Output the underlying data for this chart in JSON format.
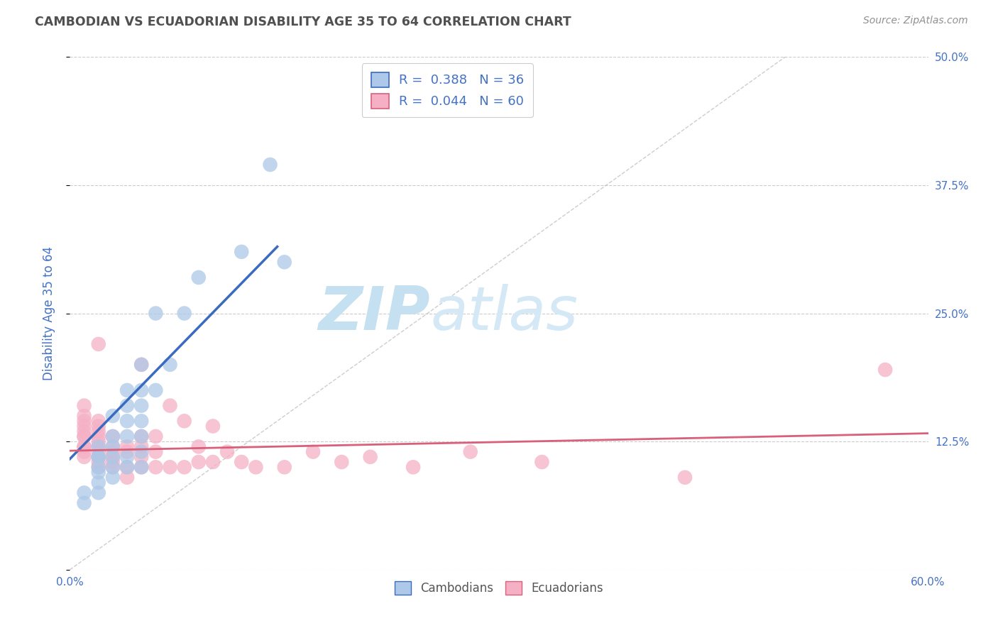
{
  "title": "CAMBODIAN VS ECUADORIAN DISABILITY AGE 35 TO 64 CORRELATION CHART",
  "source_text": "Source: ZipAtlas.com",
  "ylabel": "Disability Age 35 to 64",
  "x_min": 0.0,
  "x_max": 0.6,
  "y_min": 0.0,
  "y_max": 0.5,
  "x_ticks": [
    0.0,
    0.6
  ],
  "x_tick_labels": [
    "0.0%",
    "60.0%"
  ],
  "y_ticks": [
    0.0,
    0.125,
    0.25,
    0.375,
    0.5
  ],
  "y_tick_labels_right": [
    "",
    "12.5%",
    "25.0%",
    "37.5%",
    "50.0%"
  ],
  "legend_line1": "R =  0.388   N = 36",
  "legend_line2": "R =  0.044   N = 60",
  "cambodian_color": "#adc8e8",
  "ecuadorian_color": "#f5b0c5",
  "cambodian_line_color": "#3a6bbf",
  "ecuadorian_line_color": "#d9607a",
  "diagonal_color": "#b8b8b8",
  "background_color": "#ffffff",
  "grid_color": "#cccccc",
  "watermark_zip_color": "#b8d8ee",
  "watermark_atlas_color": "#c8dff0",
  "title_color": "#505050",
  "axis_label_color": "#4472c4",
  "source_color": "#909090",
  "legend_label_color": "#4472c4",
  "bottom_legend_color": "#555555",
  "cambodian_x": [
    0.01,
    0.01,
    0.02,
    0.02,
    0.02,
    0.02,
    0.02,
    0.02,
    0.02,
    0.03,
    0.03,
    0.03,
    0.03,
    0.03,
    0.03,
    0.04,
    0.04,
    0.04,
    0.04,
    0.04,
    0.04,
    0.05,
    0.05,
    0.05,
    0.05,
    0.05,
    0.05,
    0.05,
    0.06,
    0.06,
    0.07,
    0.08,
    0.09,
    0.12,
    0.14,
    0.15
  ],
  "cambodian_y": [
    0.075,
    0.065,
    0.075,
    0.085,
    0.095,
    0.1,
    0.11,
    0.11,
    0.12,
    0.09,
    0.1,
    0.11,
    0.12,
    0.13,
    0.15,
    0.1,
    0.11,
    0.13,
    0.145,
    0.16,
    0.175,
    0.1,
    0.115,
    0.13,
    0.145,
    0.16,
    0.175,
    0.2,
    0.175,
    0.25,
    0.2,
    0.25,
    0.285,
    0.31,
    0.395,
    0.3
  ],
  "ecuadorian_x": [
    0.01,
    0.01,
    0.01,
    0.01,
    0.01,
    0.01,
    0.01,
    0.01,
    0.01,
    0.01,
    0.01,
    0.02,
    0.02,
    0.02,
    0.02,
    0.02,
    0.02,
    0.02,
    0.02,
    0.02,
    0.02,
    0.02,
    0.03,
    0.03,
    0.03,
    0.03,
    0.03,
    0.03,
    0.04,
    0.04,
    0.04,
    0.04,
    0.05,
    0.05,
    0.05,
    0.05,
    0.05,
    0.06,
    0.06,
    0.06,
    0.07,
    0.07,
    0.08,
    0.08,
    0.09,
    0.09,
    0.1,
    0.1,
    0.11,
    0.12,
    0.13,
    0.15,
    0.17,
    0.19,
    0.21,
    0.24,
    0.28,
    0.33,
    0.43,
    0.57
  ],
  "ecuadorian_y": [
    0.11,
    0.115,
    0.12,
    0.12,
    0.13,
    0.13,
    0.135,
    0.14,
    0.145,
    0.15,
    0.16,
    0.1,
    0.105,
    0.11,
    0.115,
    0.12,
    0.125,
    0.13,
    0.135,
    0.14,
    0.145,
    0.22,
    0.1,
    0.105,
    0.11,
    0.115,
    0.12,
    0.13,
    0.09,
    0.1,
    0.115,
    0.12,
    0.1,
    0.11,
    0.12,
    0.13,
    0.2,
    0.1,
    0.115,
    0.13,
    0.1,
    0.16,
    0.1,
    0.145,
    0.105,
    0.12,
    0.105,
    0.14,
    0.115,
    0.105,
    0.1,
    0.1,
    0.115,
    0.105,
    0.11,
    0.1,
    0.115,
    0.105,
    0.09,
    0.195
  ],
  "camb_trend_x_start": 0.0,
  "camb_trend_x_end": 0.145,
  "camb_trend_y_start": 0.108,
  "camb_trend_y_end": 0.315,
  "ecua_trend_x_start": 0.0,
  "ecua_trend_x_end": 0.6,
  "ecua_trend_y_start": 0.116,
  "ecua_trend_y_end": 0.133
}
